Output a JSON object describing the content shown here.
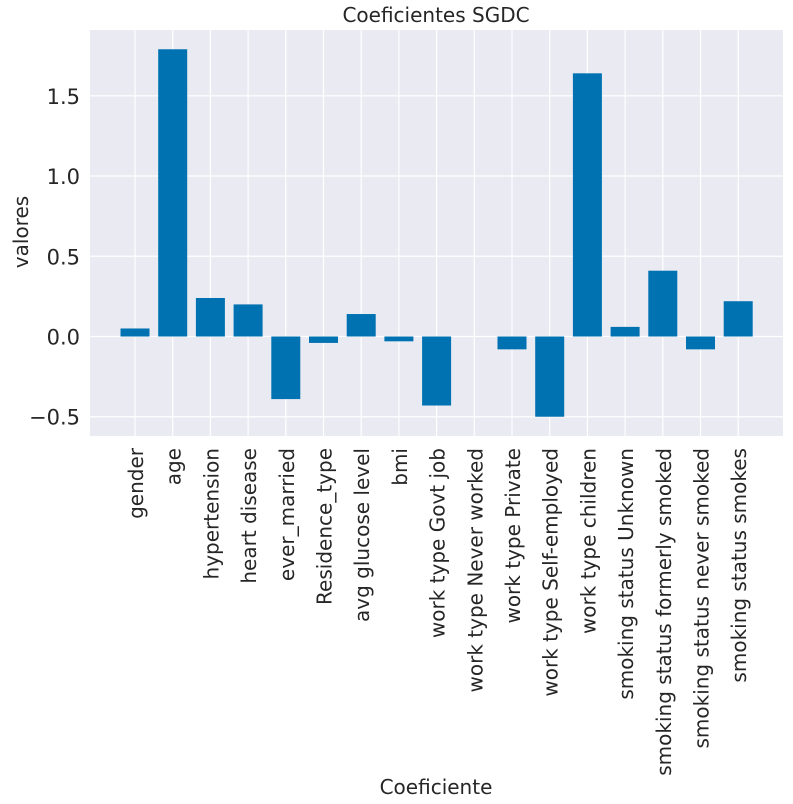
{
  "chart_data": {
    "type": "bar",
    "title": "Coeficientes SGDC",
    "xlabel": "Coeficiente",
    "ylabel": "valores",
    "categories": [
      "gender",
      "age",
      "hypertension",
      "heart disease",
      "ever_married",
      "Residence_type",
      "avg glucose level",
      "bmi",
      "work type Govt job",
      "work type Never worked",
      "work type Private",
      "work type Self-employed",
      "work type children",
      "smoking status Unknown",
      "smoking status formerly smoked",
      "smoking status never smoked",
      "smoking status smokes"
    ],
    "values": [
      0.05,
      1.79,
      0.24,
      0.2,
      -0.39,
      -0.04,
      0.14,
      -0.03,
      -0.43,
      0.0,
      -0.08,
      -0.5,
      1.64,
      0.06,
      0.41,
      -0.08,
      0.22
    ],
    "ylim": [
      -0.62,
      1.91
    ],
    "yticks": [
      -0.5,
      0.0,
      0.5,
      1.0,
      1.5
    ],
    "ytick_labels": [
      "−0.5",
      "0.0",
      "0.5",
      "1.0",
      "1.5"
    ],
    "grid": true,
    "colors": {
      "bar": "#0072b2",
      "plot_background": "#eaeaf2",
      "grid": "#ffffff",
      "text": "#262626"
    }
  }
}
